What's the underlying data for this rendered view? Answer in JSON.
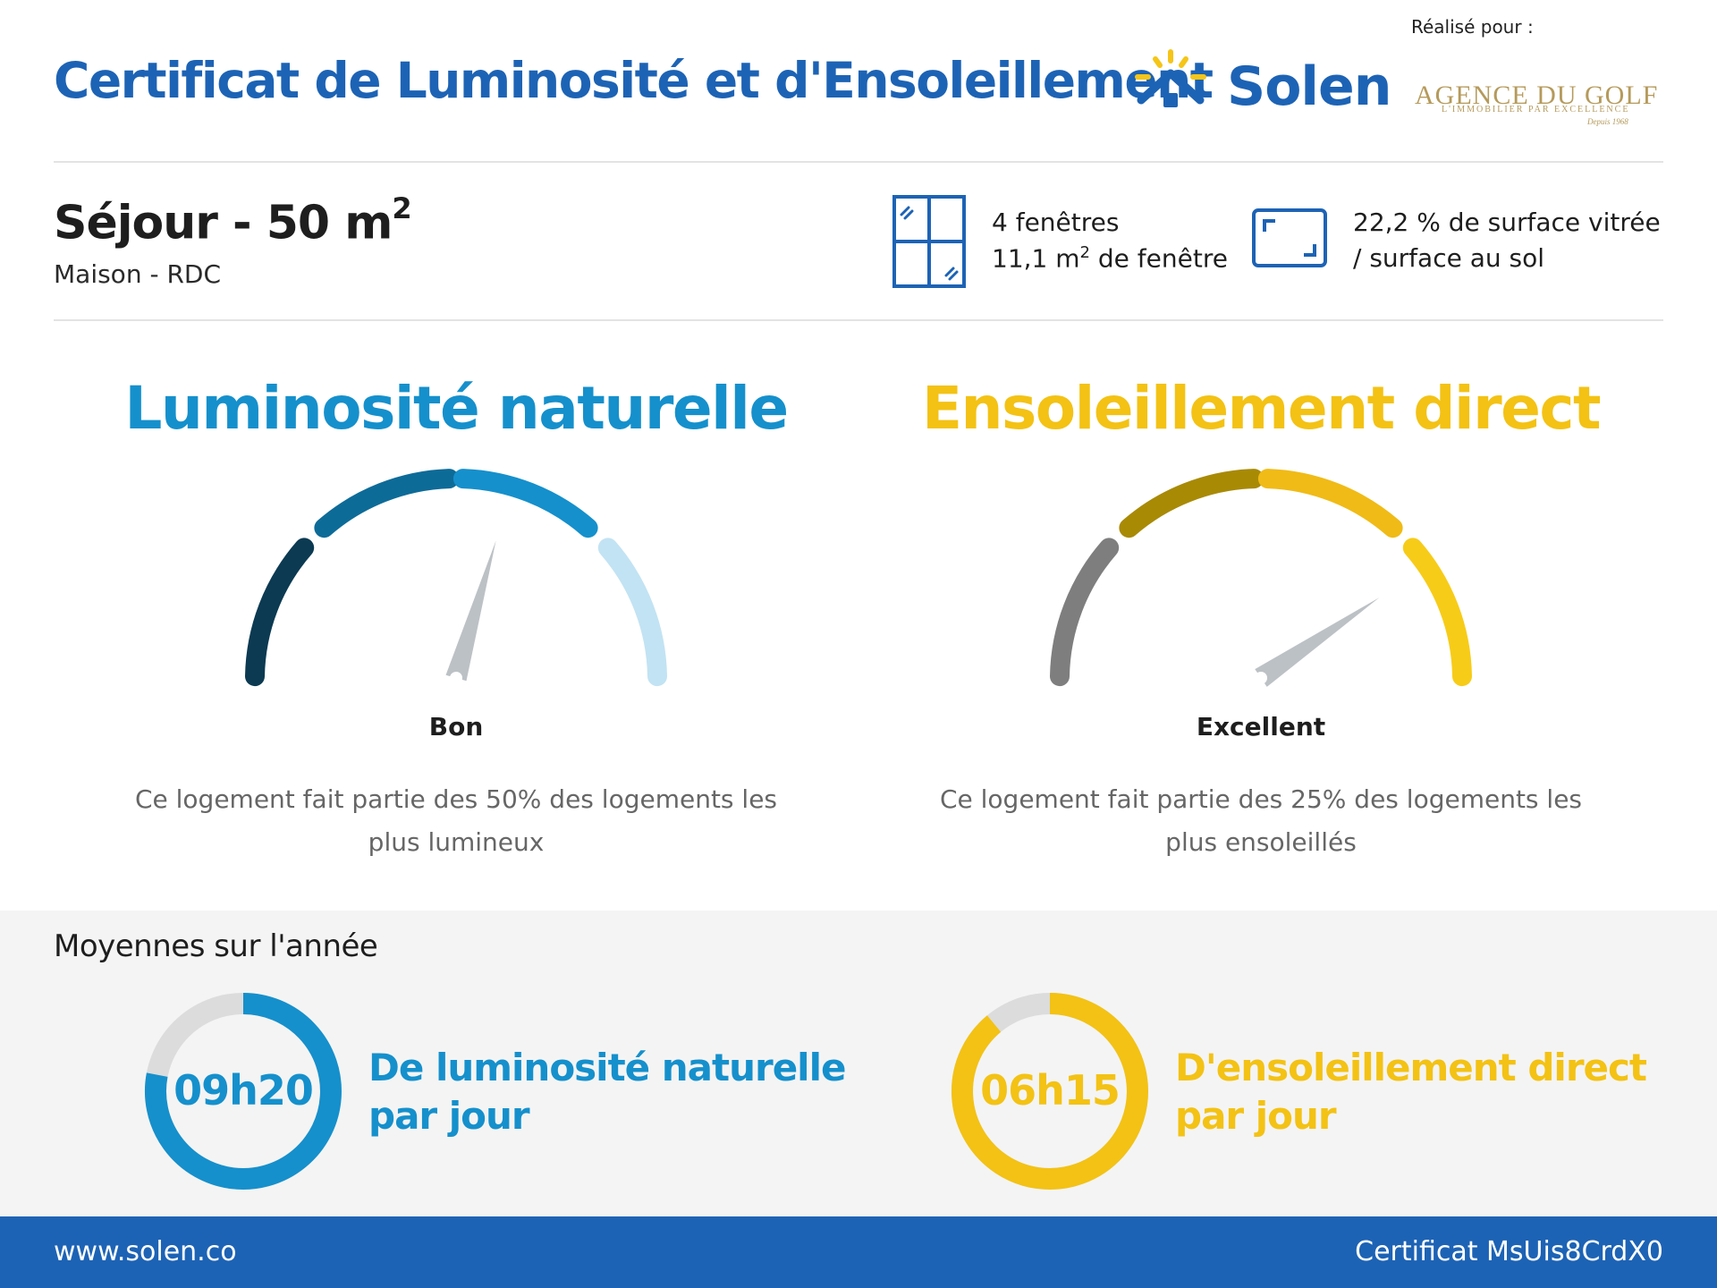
{
  "header": {
    "title": "Certificat de Luminosité et d'Ensoleillement",
    "brand": "Solen",
    "made_for_label": "Réalisé pour :",
    "agency_name": "AGENCE DU GOLF",
    "agency_tagline": "L'IMMOBILIER PAR EXCELLENCE",
    "agency_since": "Depuis 1968"
  },
  "room": {
    "title": "Séjour - 50 m",
    "title_sup": "2",
    "subtitle": "Maison - RDC"
  },
  "windows": {
    "count_text": "4 fenêtres",
    "area_prefix": "11,1 m",
    "area_sup": "2",
    "area_suffix": " de fenêtre"
  },
  "surface": {
    "line1": "22,2 % de surface vitrée",
    "line2": "/ surface au sol"
  },
  "luminosity": {
    "title": "Luminosité naturelle",
    "rating": "Bon",
    "description": "Ce logement fait partie des 50% des logements les plus lumineux",
    "segment_colors": [
      "#0b3a52",
      "#0d6b98",
      "#1590cc",
      "#c2e3f3"
    ],
    "needle_level": 0.59,
    "avg_hours": "09h20",
    "avg_fraction": 0.78,
    "caption_line1": "De luminosité naturelle",
    "caption_line2": "par jour",
    "accent": "#1590cc"
  },
  "sunshine": {
    "title": "Ensoleillement direct",
    "rating": "Excellent",
    "description": "Ce logement fait partie des 25% des logements les plus ensoleillés",
    "segment_colors": [
      "#7e7e7e",
      "#a88a05",
      "#f0bb16",
      "#f7cc18"
    ],
    "needle_level": 0.81,
    "avg_hours": "06h15",
    "avg_fraction": 0.89,
    "caption_line1": "D'ensoleillement direct",
    "caption_line2": "par jour",
    "accent": "#f3c214"
  },
  "averages": {
    "title": "Moyennes sur l'année"
  },
  "footer": {
    "url": "www.solen.co",
    "certificate": "Certificat MsUis8CrdX0"
  }
}
